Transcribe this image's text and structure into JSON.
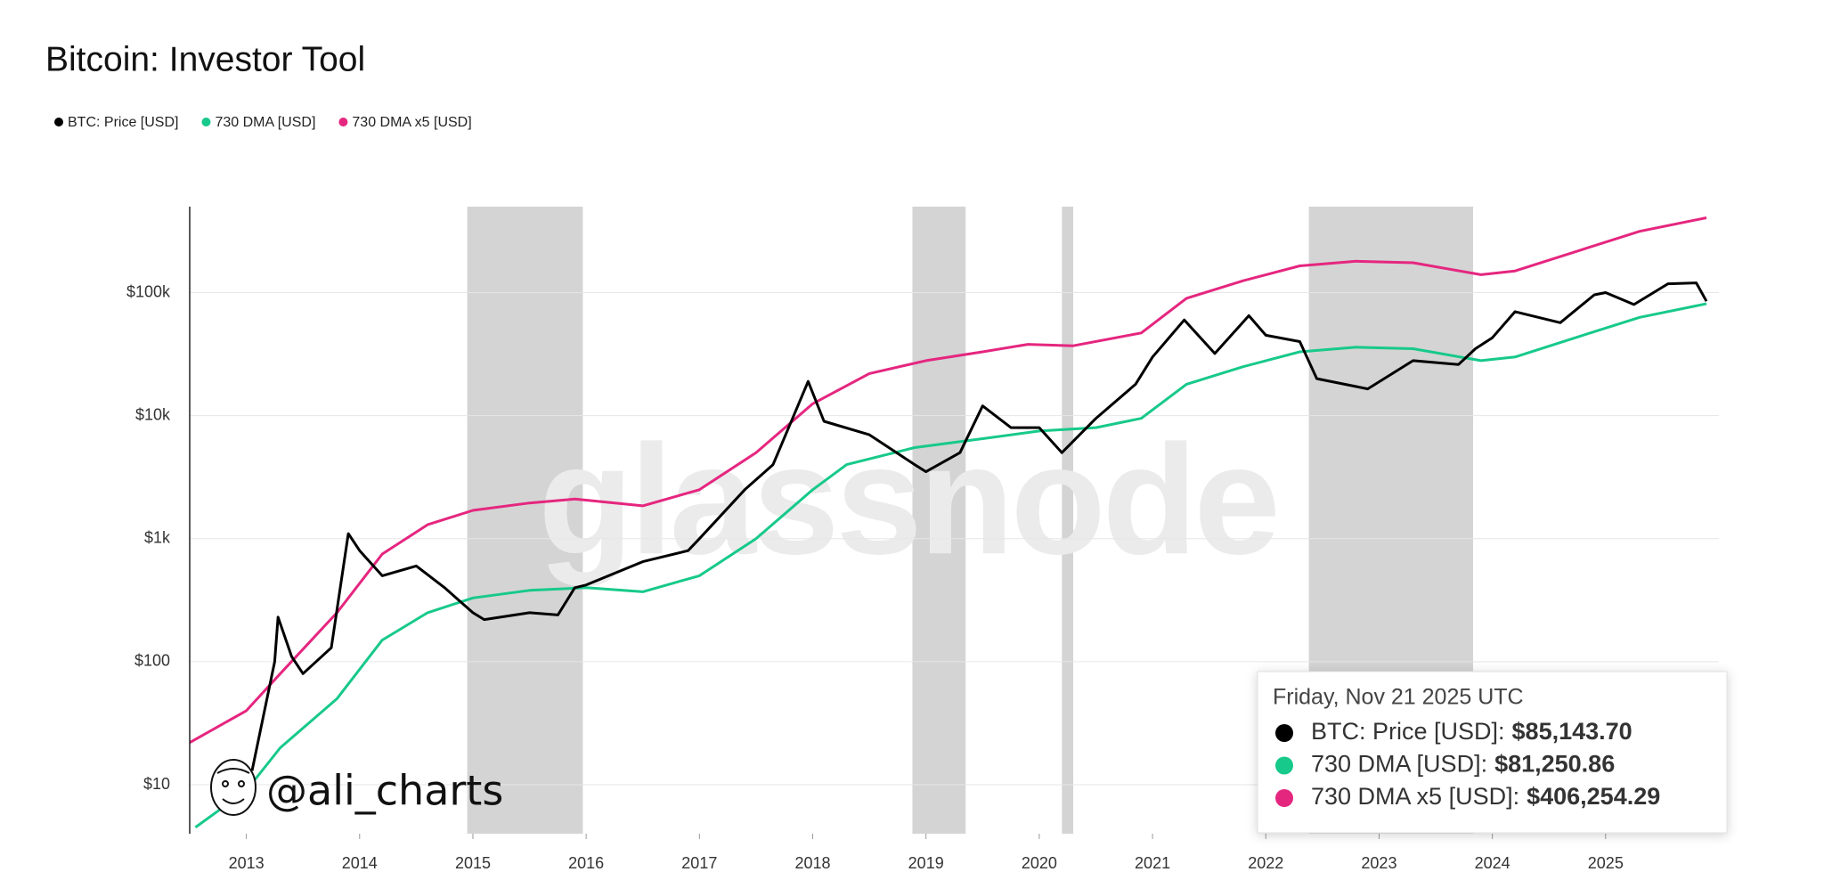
{
  "chart_data": {
    "type": "line",
    "title": "Bitcoin: Investor Tool",
    "log_y": true,
    "grid": true,
    "xlim": [
      2012.5,
      2026.0
    ],
    "xticks": [
      2013,
      2014,
      2015,
      2016,
      2017,
      2018,
      2019,
      2020,
      2021,
      2022,
      2023,
      2024,
      2025
    ],
    "ylim": [
      4,
      500000
    ],
    "yticks": [
      {
        "value": 10,
        "label": "$10"
      },
      {
        "value": 100,
        "label": "$100"
      },
      {
        "value": 1000,
        "label": "$1k"
      },
      {
        "value": 10000,
        "label": "$10k"
      },
      {
        "value": 100000,
        "label": "$100k"
      }
    ],
    "bands": [
      [
        2014.95,
        2015.97
      ],
      [
        2018.88,
        2019.35
      ],
      [
        2020.2,
        2020.3
      ],
      [
        2022.38,
        2023.83
      ]
    ],
    "band_color": "#d4d4d4",
    "watermark": "glassnode",
    "credit": "@ali_charts",
    "series": [
      {
        "name": "BTC: Price [USD]",
        "color": "#000000",
        "x": [
          2013.05,
          2013.25,
          2013.28,
          2013.4,
          2013.5,
          2013.75,
          2013.9,
          2014.0,
          2014.2,
          2014.5,
          2014.75,
          2015.0,
          2015.1,
          2015.5,
          2015.75,
          2015.9,
          2016.0,
          2016.5,
          2016.9,
          2017.0,
          2017.4,
          2017.65,
          2017.96,
          2018.1,
          2018.5,
          2018.9,
          2019.0,
          2019.3,
          2019.5,
          2019.75,
          2020.0,
          2020.2,
          2020.5,
          2020.85,
          2021.0,
          2021.28,
          2021.55,
          2021.85,
          2022.0,
          2022.3,
          2022.45,
          2022.9,
          2023.3,
          2023.7,
          2023.85,
          2024.0,
          2024.2,
          2024.6,
          2024.9,
          2025.0,
          2025.25,
          2025.55,
          2025.8,
          2025.89
        ],
        "values": [
          13,
          100,
          230,
          110,
          80,
          130,
          1100,
          800,
          500,
          600,
          400,
          250,
          220,
          250,
          240,
          400,
          420,
          650,
          800,
          1000,
          2500,
          4000,
          19000,
          9000,
          7000,
          4000,
          3500,
          5000,
          12000,
          8000,
          8000,
          5000,
          9500,
          18000,
          30000,
          60000,
          32000,
          65000,
          45000,
          40000,
          20000,
          16500,
          28000,
          26000,
          35000,
          43000,
          70000,
          57000,
          96000,
          100000,
          80000,
          118000,
          120000,
          85143.7
        ]
      },
      {
        "name": "730 DMA [USD]",
        "color": "#17c98a",
        "x": [
          2012.55,
          2013.0,
          2013.3,
          2013.8,
          2014.2,
          2014.6,
          2015.0,
          2015.5,
          2016.0,
          2016.5,
          2017.0,
          2017.5,
          2018.0,
          2018.3,
          2018.9,
          2019.5,
          2020.0,
          2020.5,
          2020.9,
          2021.3,
          2021.8,
          2022.3,
          2022.8,
          2023.3,
          2023.9,
          2024.2,
          2024.8,
          2025.3,
          2025.89
        ],
        "values": [
          4.5,
          9,
          20,
          50,
          150,
          250,
          330,
          380,
          400,
          370,
          500,
          1000,
          2500,
          4000,
          5500,
          6500,
          7500,
          8000,
          9500,
          18000,
          25000,
          33000,
          36000,
          35000,
          28000,
          30000,
          45000,
          63000,
          81250.86
        ]
      },
      {
        "name": "730 DMA x5 [USD]",
        "color": "#e5267f",
        "x": [
          2012.5,
          2013.0,
          2013.3,
          2013.8,
          2014.2,
          2014.6,
          2015.0,
          2015.5,
          2015.9,
          2016.5,
          2017.0,
          2017.5,
          2018.0,
          2018.5,
          2019.0,
          2019.5,
          2019.9,
          2020.3,
          2020.9,
          2021.3,
          2021.8,
          2022.3,
          2022.8,
          2023.3,
          2023.9,
          2024.2,
          2024.8,
          2025.3,
          2025.89
        ],
        "values": [
          22,
          40,
          80,
          250,
          750,
          1300,
          1700,
          1950,
          2100,
          1850,
          2500,
          5000,
          12500,
          22000,
          28000,
          33000,
          38000,
          37000,
          47000,
          90000,
          125000,
          165000,
          180000,
          175000,
          140000,
          150000,
          225000,
          315000,
          406254.29
        ]
      }
    ],
    "tooltip": {
      "title": "Friday, Nov 21 2025 UTC",
      "rows": [
        {
          "label": "BTC: Price [USD]:",
          "value_label": "$85,143.70"
        },
        {
          "label": "730 DMA [USD]:",
          "value_label": "$81,250.86"
        },
        {
          "label": "730 DMA x5 [USD]:",
          "value_label": "$406,254.29"
        }
      ]
    }
  }
}
